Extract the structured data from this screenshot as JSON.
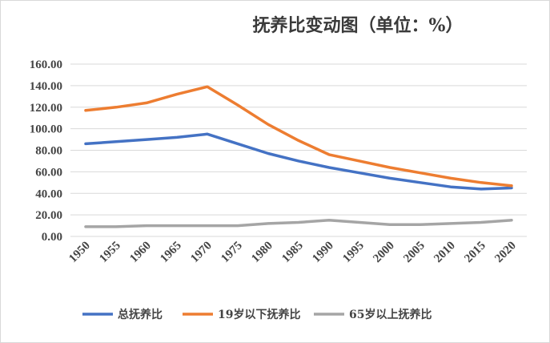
{
  "chart_data": {
    "type": "line",
    "title": "抚养比变动图（单位：%）",
    "xlabel": "",
    "ylabel": "",
    "x": [
      "1950",
      "1955",
      "1960",
      "1965",
      "1970",
      "1975",
      "1980",
      "1985",
      "1990",
      "1995",
      "2000",
      "2005",
      "2010",
      "2015",
      "2020"
    ],
    "ylim": [
      0,
      160
    ],
    "yticks": [
      "0.00",
      "20.00",
      "40.00",
      "60.00",
      "80.00",
      "100.00",
      "120.00",
      "140.00",
      "160.00"
    ],
    "grid": true,
    "legend": "bottom",
    "series": [
      {
        "name": "总抚养比",
        "color": "#4472C4",
        "values": [
          86,
          88,
          90,
          92,
          95,
          86,
          77,
          70,
          64,
          59,
          54,
          50,
          46,
          44,
          45
        ]
      },
      {
        "name": "19岁以下抚养比",
        "color": "#ED7D31",
        "values": [
          117,
          120,
          124,
          132,
          139,
          122,
          104,
          89,
          76,
          70,
          64,
          59,
          54,
          50,
          47
        ]
      },
      {
        "name": "65岁以上抚养比",
        "color": "#A5A5A5",
        "values": [
          9,
          9,
          10,
          10,
          10,
          10,
          12,
          13,
          15,
          13,
          11,
          11,
          12,
          13,
          15
        ]
      }
    ]
  }
}
